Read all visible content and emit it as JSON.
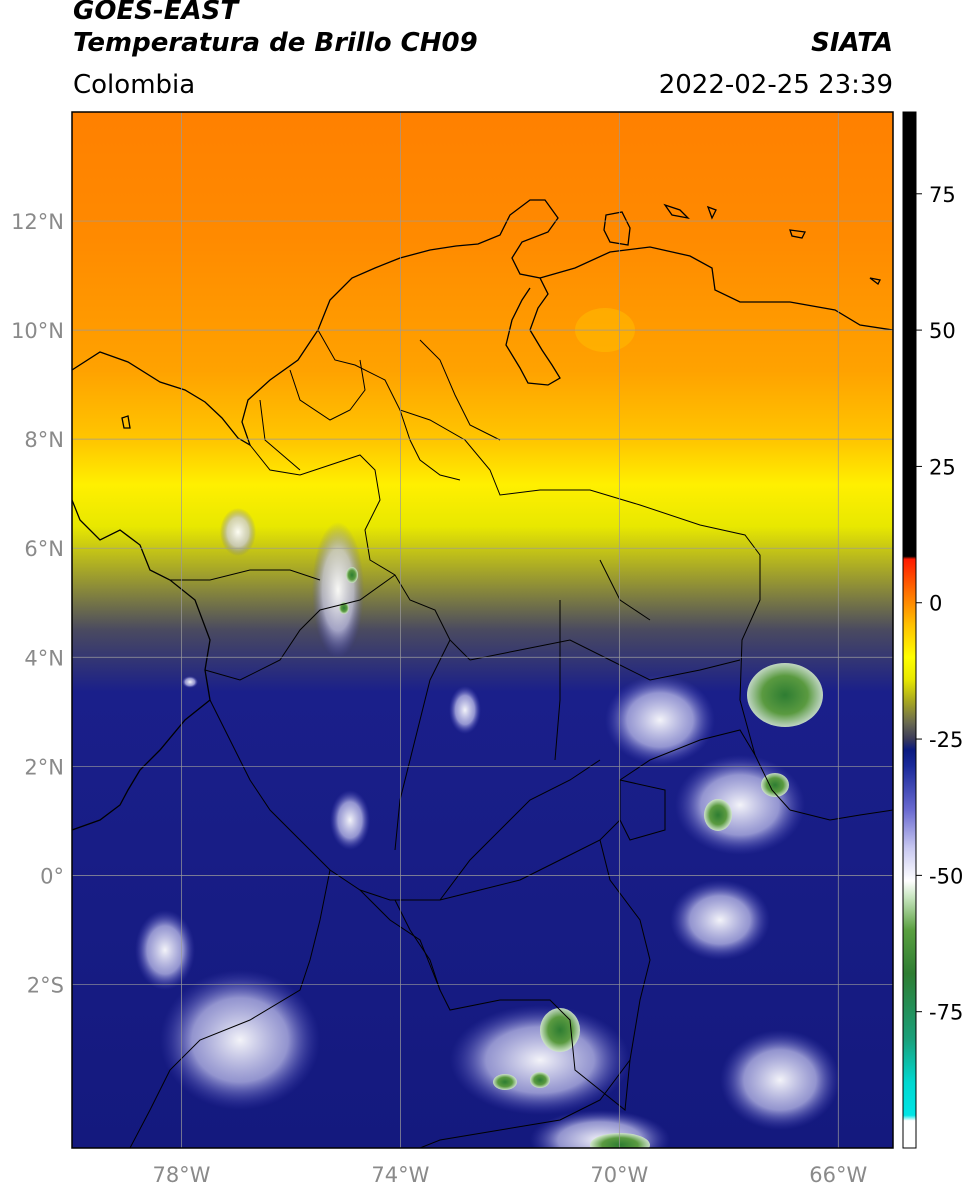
{
  "header": {
    "satellite": "GOES-EAST",
    "product": "Temperatura de Brillo CH09",
    "region": "Colombia",
    "agency": "SIATA",
    "datetime": "2022-02-25 23:39"
  },
  "map": {
    "lon_range": [
      -80,
      -65
    ],
    "lat_range": [
      -5,
      14
    ],
    "lat_ticks": [
      {
        "value": 12,
        "label": "12°N"
      },
      {
        "value": 10,
        "label": "10°N"
      },
      {
        "value": 8,
        "label": "8°N"
      },
      {
        "value": 6,
        "label": "6°N"
      },
      {
        "value": 4,
        "label": "4°N"
      },
      {
        "value": 2,
        "label": "2°N"
      },
      {
        "value": 0,
        "label": "0°"
      },
      {
        "value": -2,
        "label": "2°S"
      }
    ],
    "lon_ticks": [
      {
        "value": -78,
        "label": "78°W"
      },
      {
        "value": -74,
        "label": "74°W"
      },
      {
        "value": -70,
        "label": "70°W"
      },
      {
        "value": -66,
        "label": "66°W"
      }
    ],
    "colors": {
      "warm_orange": "#ff8a00",
      "orange": "#ffa500",
      "yellow": "#ffee00",
      "olive": "#9a9a28",
      "navy": "#1a1f8a",
      "white_cloud": "#f2f2ff",
      "green_core": "#3d8a2a",
      "grid": "#9a9a9a"
    }
  },
  "colorbar": {
    "range": [
      -100,
      90
    ],
    "ticks": [
      {
        "value": 75,
        "label": "75"
      },
      {
        "value": 50,
        "label": "50"
      },
      {
        "value": 25,
        "label": "25"
      },
      {
        "value": 0,
        "label": "0"
      },
      {
        "value": -25,
        "label": "-25"
      },
      {
        "value": -50,
        "label": "-50"
      },
      {
        "value": -75,
        "label": "-75"
      }
    ],
    "stops": [
      {
        "value": -100,
        "color": "#ffffff"
      },
      {
        "value": -95,
        "color": "#ffffff"
      },
      {
        "value": -94,
        "color": "#00e5e5"
      },
      {
        "value": -88,
        "color": "#00d8d0"
      },
      {
        "value": -80,
        "color": "#1aa07a"
      },
      {
        "value": -68,
        "color": "#2e7d32"
      },
      {
        "value": -60,
        "color": "#5aa040"
      },
      {
        "value": -54,
        "color": "#c8e6c0"
      },
      {
        "value": -51,
        "color": "#ffffff"
      },
      {
        "value": -45,
        "color": "#c8c8f0"
      },
      {
        "value": -38,
        "color": "#6a6ad0"
      },
      {
        "value": -30,
        "color": "#1a2a9a"
      },
      {
        "value": -27,
        "color": "#0a1a80"
      },
      {
        "value": -25,
        "color": "#3a3a5a"
      },
      {
        "value": -22,
        "color": "#6a6a50"
      },
      {
        "value": -18,
        "color": "#a8a820"
      },
      {
        "value": -14,
        "color": "#e8e800"
      },
      {
        "value": -10,
        "color": "#ffff00"
      },
      {
        "value": -4,
        "color": "#ffc000"
      },
      {
        "value": 2,
        "color": "#ff7000"
      },
      {
        "value": 8,
        "color": "#ff1a00"
      },
      {
        "value": 8.5,
        "color": "#000000"
      },
      {
        "value": 90,
        "color": "#000000"
      }
    ]
  }
}
